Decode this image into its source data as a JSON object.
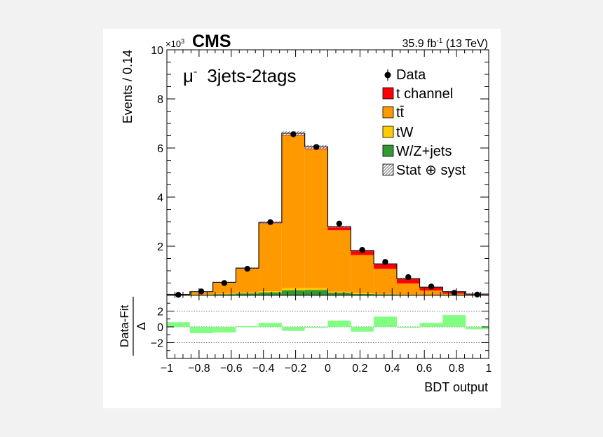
{
  "chart_data": {
    "type": "bar",
    "header": {
      "cms": "CMS",
      "exponent_label": "×10",
      "exponent_power": "3",
      "lumi": "35.9 fb",
      "lumi_sup": "-1",
      "energy": " (13 TeV)"
    },
    "channel_label": {
      "particle": "μ",
      "charge": "-",
      "category": "3jets-2tags"
    },
    "xlabel": "BDT output",
    "ylabel": "Events / 0.14",
    "ratio_ylabel_num": "Data-Fit",
    "ratio_ylabel_den": "Δ",
    "xlim": [
      -1,
      1
    ],
    "ylim": [
      0,
      10
    ],
    "ratio_ylim": [
      -4,
      4
    ],
    "x_ticks": [
      -1,
      -0.8,
      -0.6,
      -0.4,
      -0.2,
      0,
      0.2,
      0.4,
      0.6,
      0.8,
      1
    ],
    "x_tick_labels": [
      "−1",
      "−0.8",
      "−0.6",
      "−0.4",
      "−0.2",
      "0",
      "0.2",
      "0.4",
      "0.6",
      "0.8",
      "1"
    ],
    "y_ticks": [
      2,
      4,
      6,
      8,
      10
    ],
    "y_tick_labels": [
      "2",
      "4",
      "6",
      "8",
      "10"
    ],
    "ratio_y_ticks": [
      -2,
      0,
      2
    ],
    "ratio_y_tick_labels": [
      "−2",
      "0",
      "2"
    ],
    "bin_edges": [
      -1,
      -0.857,
      -0.714,
      -0.571,
      -0.429,
      -0.286,
      -0.143,
      0,
      0.143,
      0.286,
      0.429,
      0.571,
      0.714,
      0.857,
      1
    ],
    "series": [
      {
        "name": "W/Z+jets",
        "color": "#339933",
        "values": [
          0.01,
          0.02,
          0.05,
          0.08,
          0.12,
          0.2,
          0.22,
          0.1,
          0.06,
          0.04,
          0.02,
          0.01,
          0.005,
          0.002
        ]
      },
      {
        "name": "tW",
        "color": "#ffcc00",
        "values": [
          0.005,
          0.01,
          0.02,
          0.03,
          0.05,
          0.1,
          0.08,
          0.05,
          0.03,
          0.02,
          0.01,
          0.005,
          0.003,
          0.001
        ]
      },
      {
        "name": "tt̄",
        "color": "#ff9900",
        "values": [
          0.02,
          0.11,
          0.44,
          0.97,
          2.75,
          6.2,
          5.65,
          2.5,
          1.55,
          1.02,
          0.45,
          0.18,
          0.06,
          0.02
        ]
      },
      {
        "name": "t channel",
        "color": "#ff0000",
        "values": [
          0.005,
          0.01,
          0.02,
          0.03,
          0.05,
          0.1,
          0.1,
          0.15,
          0.18,
          0.2,
          0.2,
          0.14,
          0.08,
          0.03
        ]
      }
    ],
    "data": {
      "name": "Data",
      "x": [
        -0.929,
        -0.786,
        -0.643,
        -0.5,
        -0.357,
        -0.214,
        -0.071,
        0.071,
        0.214,
        0.357,
        0.5,
        0.643,
        0.786,
        0.929
      ],
      "y": [
        0.02,
        0.16,
        0.5,
        1.08,
        2.98,
        6.56,
        6.04,
        2.92,
        1.85,
        1.36,
        0.74,
        0.36,
        0.1,
        0.03
      ]
    },
    "uncertainty": {
      "name": "Stat ⊕ syst"
    },
    "ratio": {
      "x": [
        -0.929,
        -0.786,
        -0.643,
        -0.5,
        -0.357,
        -0.214,
        -0.071,
        0.071,
        0.214,
        0.357,
        0.5,
        0.643,
        0.786,
        0.929
      ],
      "values": [
        0.6,
        -0.8,
        -0.7,
        0.1,
        0.5,
        -0.5,
        0.0,
        0.8,
        -0.6,
        1.3,
        -0.1,
        0.5,
        1.5,
        -0.3
      ],
      "color": "#80ff80"
    },
    "legend": [
      "Data",
      "t channel",
      "tt̄",
      "tW",
      "W/Z+jets",
      "Stat ⊕ syst"
    ],
    "legend_position": "top-right",
    "grid": false
  }
}
